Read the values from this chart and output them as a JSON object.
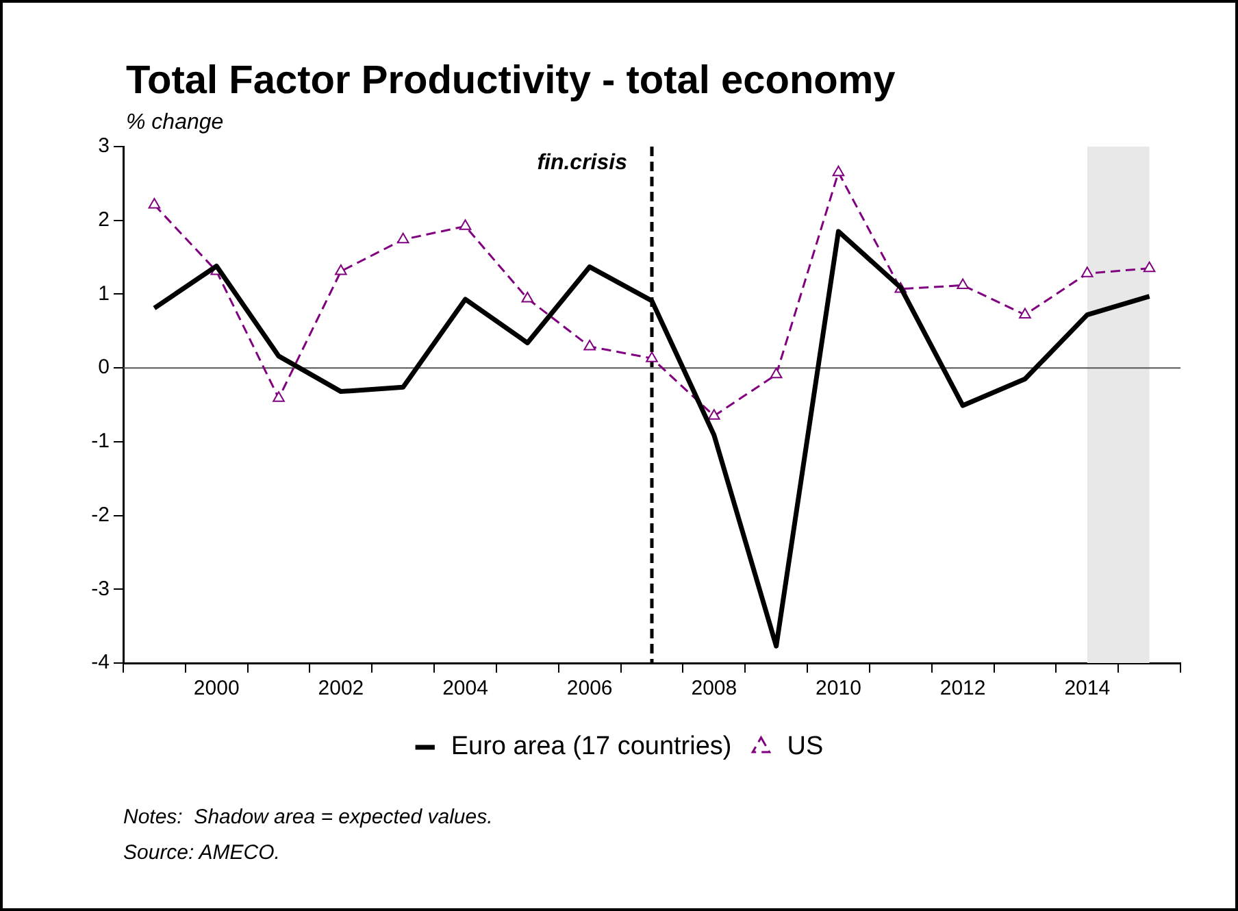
{
  "chart_data": {
    "type": "line",
    "title": "Total Factor Productivity - total economy",
    "ylabel": "% change",
    "x": [
      1999,
      2000,
      2001,
      2002,
      2003,
      2004,
      2005,
      2006,
      2007,
      2008,
      2009,
      2010,
      2011,
      2012,
      2013,
      2014,
      2015
    ],
    "series": [
      {
        "name": "Euro area (17 countries)",
        "color": "#000000",
        "marker": "none",
        "line_style": "solid",
        "values": [
          0.81,
          1.38,
          0.16,
          -0.32,
          -0.26,
          0.93,
          0.34,
          1.37,
          0.91,
          -0.91,
          -3.77,
          1.85,
          1.09,
          -0.51,
          -0.15,
          0.72,
          0.97
        ]
      },
      {
        "name": "US",
        "color": "#800080",
        "marker": "triangle",
        "line_style": "dashed",
        "values": [
          2.21,
          1.31,
          -0.41,
          1.31,
          1.74,
          1.92,
          0.94,
          0.29,
          0.13,
          -0.65,
          -0.09,
          2.65,
          1.07,
          1.12,
          0.72,
          1.28,
          1.35
        ]
      }
    ],
    "xlim": [
      1998.5,
      2015.5
    ],
    "xticks": [
      {
        "value": 1998.5,
        "label": null
      },
      {
        "value": 1999.5,
        "label": null
      },
      2000,
      {
        "value": 2000.5,
        "label": null
      },
      {
        "value": 2001.5,
        "label": null
      },
      2002,
      {
        "value": 2002.5,
        "label": null
      },
      {
        "value": 2003.5,
        "label": null
      },
      2004,
      {
        "value": 2004.5,
        "label": null
      },
      {
        "value": 2005.5,
        "label": null
      },
      2006,
      {
        "value": 2006.5,
        "label": null
      },
      {
        "value": 2007.5,
        "label": null
      },
      2008,
      {
        "value": 2008.5,
        "label": null
      },
      {
        "value": 2009.5,
        "label": null
      },
      2010,
      {
        "value": 2010.5,
        "label": null
      },
      {
        "value": 2011.5,
        "label": null
      },
      2012,
      {
        "value": 2012.5,
        "label": null
      },
      {
        "value": 2013.5,
        "label": null
      },
      2014,
      {
        "value": 2014.5,
        "label": null
      },
      {
        "value": 2015.5,
        "label": null
      }
    ],
    "ylim": [
      -4,
      3
    ],
    "yticks": [
      -4,
      -3,
      -2,
      -1,
      0,
      1,
      2,
      3
    ],
    "grid": false,
    "legend": "bottom",
    "ref_lines": [
      {
        "axis": "y",
        "value": 0,
        "color": "#555555",
        "line_style": "solid"
      },
      {
        "axis": "x",
        "value": 2007,
        "label": "fin.crisis",
        "color": "#000000",
        "line_style": "dashed"
      }
    ],
    "bands": [
      {
        "axis": "x",
        "from": 2014,
        "to": 2015,
        "color": "#e8e8e8"
      }
    ],
    "annotations": [
      "Notes:  Shadow area = expected values.",
      "Source: AMECO."
    ]
  }
}
